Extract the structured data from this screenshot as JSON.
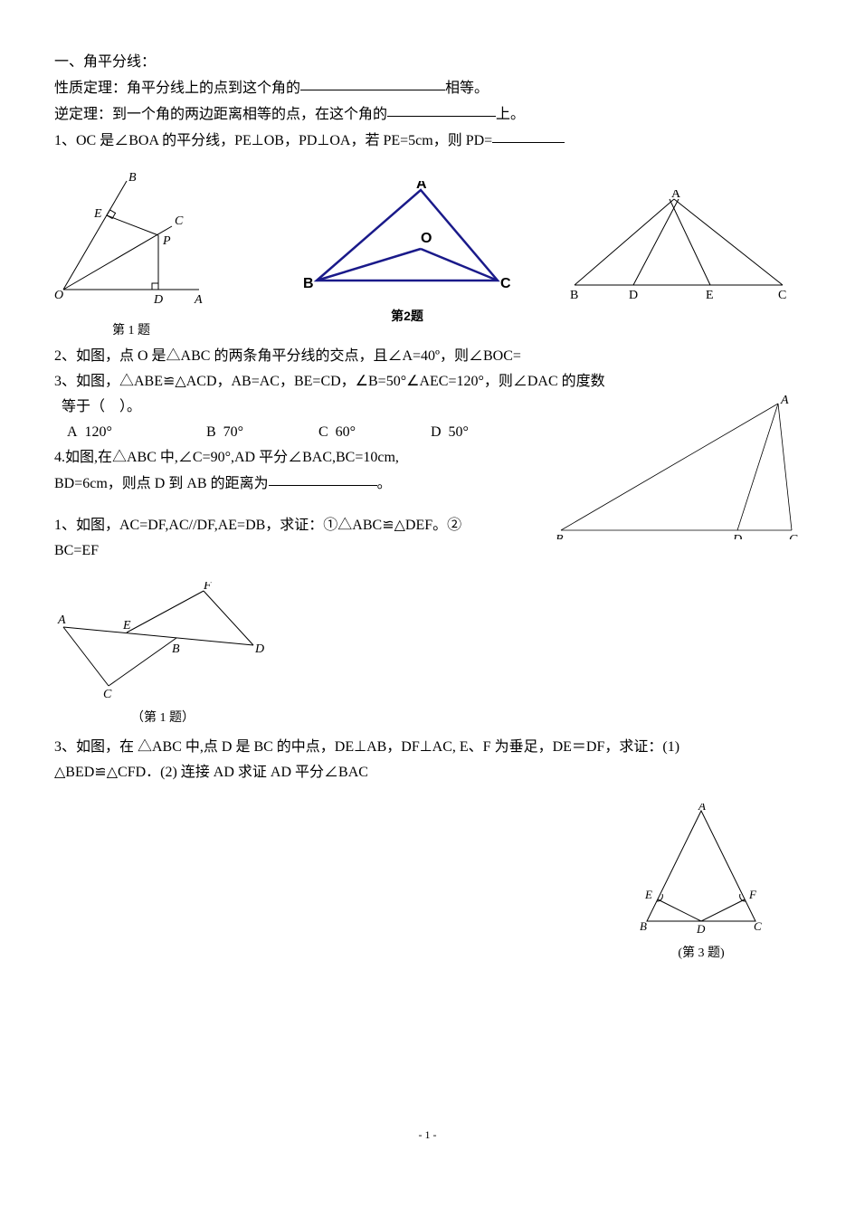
{
  "heading": "一、角平分线：",
  "propLine1a": "性质定理：角平分线上的点到这个角的",
  "propLine1b": "相等。",
  "propLine2a": "逆定理：到一个角的两边距离相等的点，在这个角的",
  "propLine2b": "上。",
  "q1a": "1、OC 是∠BOA 的平分线，PE⊥OB，PD⊥OA，若 PE=5cm，则 PD=",
  "figs": {
    "fig1": {
      "type": "diagram",
      "labels": {
        "O": "O",
        "B": "B",
        "E": "E",
        "C": "C",
        "P": "P",
        "D": "D",
        "A": "A"
      },
      "caption": "第 1 题",
      "stroke": "#000000",
      "stroke_width": 1,
      "italic": true
    },
    "fig2": {
      "type": "diagram",
      "labels": {
        "A": "A",
        "B": "B",
        "C": "C",
        "O": "O"
      },
      "caption": "第2题",
      "stroke": "#1a1a8a",
      "stroke_width": 2.5,
      "bold": true
    },
    "fig3": {
      "type": "diagram",
      "labels": {
        "A": "A",
        "B": "B",
        "D": "D",
        "E": "E",
        "C": "C"
      },
      "stroke": "#000000",
      "stroke_width": 1
    },
    "fig4": {
      "type": "diagram",
      "labels": {
        "A": "A",
        "B": "B",
        "D": "D",
        "C": "C"
      },
      "stroke": "#000000",
      "stroke_width": 0.8
    },
    "fig5": {
      "type": "diagram",
      "labels": {
        "A": "A",
        "E": "E",
        "B": "B",
        "D": "D",
        "F": "F",
        "C": "C"
      },
      "stroke": "#000000",
      "stroke_width": 1,
      "caption": "（第 1 题）"
    },
    "fig6": {
      "type": "diagram",
      "labels": {
        "A": "A",
        "E": "E",
        "F": "F",
        "B": "B",
        "D": "D",
        "C": "C"
      },
      "stroke": "#000000",
      "stroke_width": 1,
      "caption": "(第 3 题)"
    }
  },
  "q2": "2、如图，点 O 是△ABC 的两条角平分线的交点，且∠A=40º，则∠BOC=",
  "q3a": "3、如图，△ABE≌△ACD，AB=AC，BE=CD，∠B=50°∠AEC=120°，则∠DAC 的度数",
  "q3b": "等于（    ）。",
  "q3opts": {
    "A": "A  120°",
    "B": "B  70°",
    "C": "C  60°",
    "D": "D  50°"
  },
  "q4a": "4.如图,在△ABC 中,∠C=90°,AD 平分∠BAC,BC=10cm,",
  "q4b_a": "BD=6cm，则点 D 到 AB 的距离为",
  "q4b_b": "。",
  "proof1a": "1、如图，AC=DF,AC//DF,AE=DB，求证：①△ABC≌△DEF。②",
  "proof1b": "BC=EF",
  "proof3a": "3、如图，在 △ABC 中,点 D 是 BC 的中点，DE⊥AB，DF⊥AC, E、F 为垂足，DE＝DF，求证：(1)",
  "proof3b": "△BED≌△CFD．(2) 连接 AD 求证 AD 平分∠BAC",
  "pagenum": "- 1 -",
  "blanks": {
    "w1": 160,
    "w2": 120,
    "w3": 80,
    "w4": 120
  }
}
